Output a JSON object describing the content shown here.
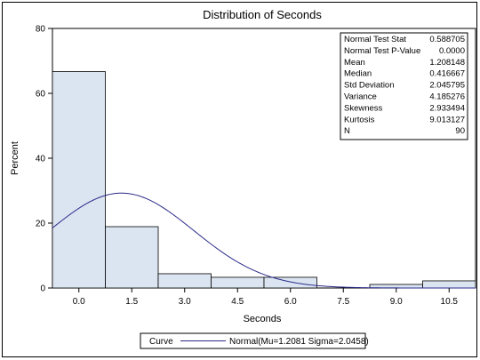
{
  "chart_data": {
    "type": "bar",
    "title": "Distribution of Seconds",
    "xlabel": "Seconds",
    "ylabel": "Percent",
    "xlim": [
      -0.75,
      11.25
    ],
    "ylim": [
      0,
      80
    ],
    "x_ticks": [
      "0.0",
      "1.5",
      "3.0",
      "4.5",
      "6.0",
      "7.5",
      "9.0",
      "10.5"
    ],
    "y_ticks": [
      "0",
      "20",
      "40",
      "60",
      "80"
    ],
    "bin_width": 1.5,
    "bins": [
      {
        "center": 0.0,
        "value": 66.7
      },
      {
        "center": 1.5,
        "value": 18.9
      },
      {
        "center": 3.0,
        "value": 4.4
      },
      {
        "center": 4.5,
        "value": 3.3
      },
      {
        "center": 6.0,
        "value": 3.3
      },
      {
        "center": 7.5,
        "value": 0.0
      },
      {
        "center": 9.0,
        "value": 1.1
      },
      {
        "center": 10.5,
        "value": 2.2
      }
    ],
    "normal_curve": {
      "mu": 1.2081,
      "sigma": 2.0458,
      "n": 90
    },
    "bar_fill": "#dbe5f1",
    "curve_color": "#2a2a8a",
    "stats": [
      {
        "label": "Normal Test Stat",
        "value": "0.588705"
      },
      {
        "label": "Normal Test P-Value",
        "value": "0.0000"
      },
      {
        "label": "Mean",
        "value": "1.208148"
      },
      {
        "label": "Median",
        "value": "0.416667"
      },
      {
        "label": "Std Deviation",
        "value": "2.045795"
      },
      {
        "label": "Variance",
        "value": "4.185276"
      },
      {
        "label": "Skewness",
        "value": "2.933494"
      },
      {
        "label": "Kurtosis",
        "value": "9.013127"
      },
      {
        "label": "N",
        "value": "90"
      }
    ],
    "legend": {
      "title": "Curve",
      "entry": "Normal(Mu=1.2081 Sigma=2.0458)",
      "placement": "bottom"
    }
  }
}
